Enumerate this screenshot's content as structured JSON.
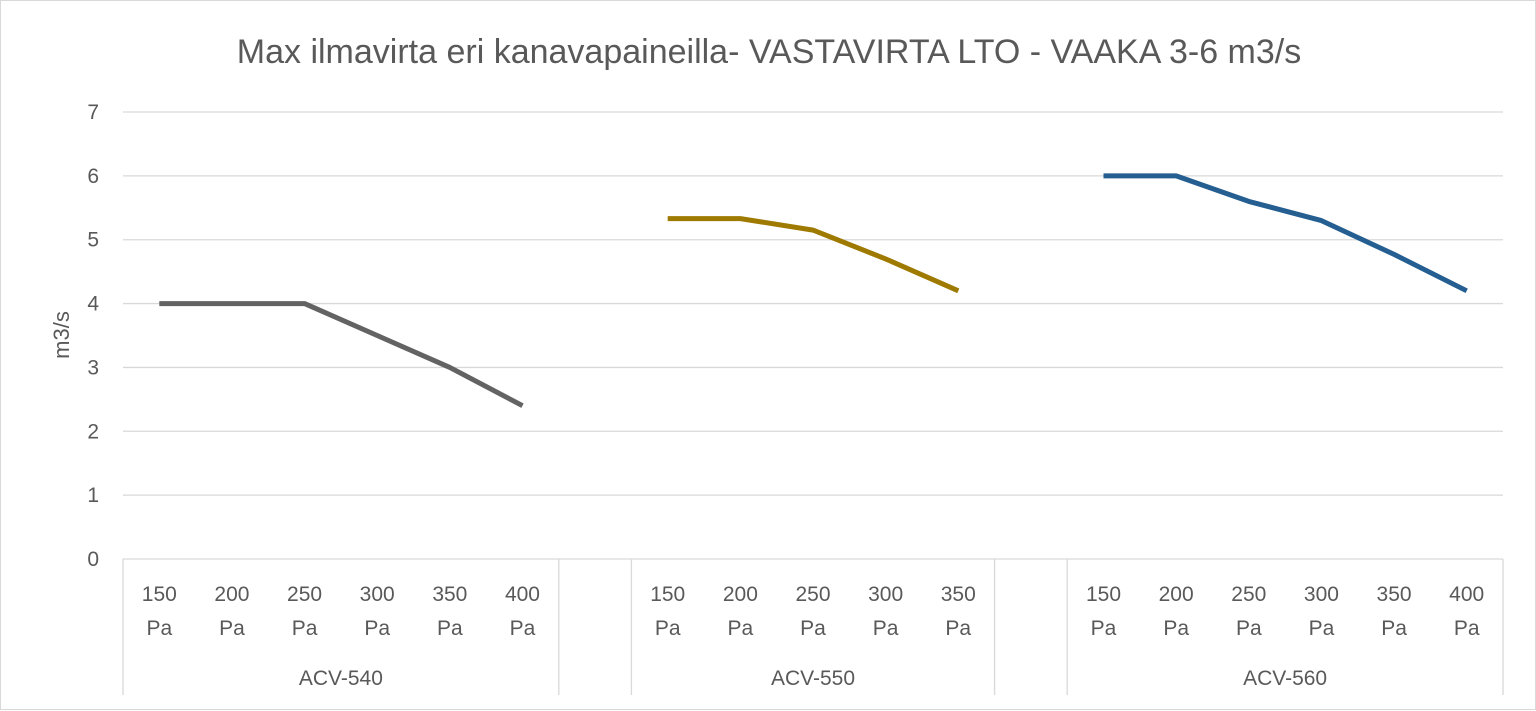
{
  "chart_data": {
    "type": "line",
    "title": "Max ilmavirta eri kanavapaineilla- VASTAVIRTA LTO - VAAKA 3-6 m3/s",
    "xlabel": "",
    "ylabel": "m3/s",
    "ylim": [
      0,
      7
    ],
    "yticks": [
      "0",
      "1",
      "2",
      "3",
      "4",
      "5",
      "6",
      "7"
    ],
    "grid": true,
    "legend": "none",
    "groups": [
      {
        "label": "ACV-540",
        "categories": [
          "150 Pa",
          "200 Pa",
          "250 Pa",
          "300 Pa",
          "350 Pa",
          "400 Pa"
        ],
        "values": [
          4.0,
          4.0,
          4.0,
          3.5,
          3.0,
          2.4
        ],
        "color": "#636363"
      },
      {
        "label": "ACV-550",
        "categories": [
          "150 Pa",
          "200 Pa",
          "250 Pa",
          "300 Pa",
          "350 Pa"
        ],
        "values": [
          5.33,
          5.33,
          5.15,
          4.7,
          4.2
        ],
        "color": "#9e7a00"
      },
      {
        "label": "ACV-560",
        "categories": [
          "150 Pa",
          "200 Pa",
          "250 Pa",
          "300 Pa",
          "350 Pa",
          "400 Pa"
        ],
        "values": [
          6.0,
          6.0,
          5.6,
          5.3,
          4.77,
          4.2
        ],
        "color": "#255e91"
      }
    ]
  }
}
